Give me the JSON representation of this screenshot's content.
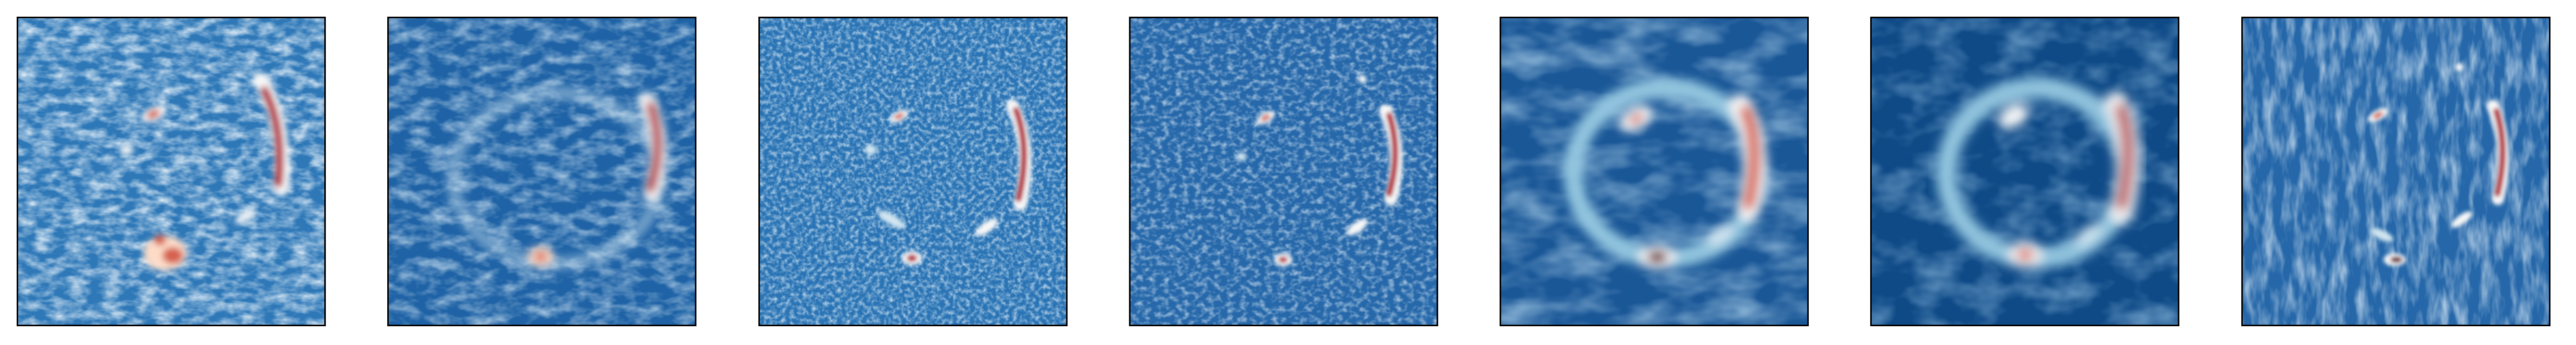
{
  "figure": {
    "description_free": true,
    "colormap": {
      "name": "RdBu_r",
      "stops": [
        "#08306b",
        "#2166ac",
        "#4393c3",
        "#92c5de",
        "#d1e5f0",
        "#f7f7f7",
        "#fddbc7",
        "#f4a582",
        "#d6604d",
        "#b2182b",
        "#67001f"
      ]
    },
    "panels": [
      {
        "id": 1,
        "base": "#2e78b8",
        "noise": "blotchy",
        "ring": false
      },
      {
        "id": 2,
        "base": "#1f63a6",
        "noise": "smooth",
        "ring": true
      },
      {
        "id": 3,
        "base": "#2a74b5",
        "noise": "fine",
        "ring": true
      },
      {
        "id": 4,
        "base": "#2668aa",
        "noise": "fine",
        "ring": true
      },
      {
        "id": 5,
        "base": "#1a5797",
        "noise": "smooth",
        "ring": true
      },
      {
        "id": 6,
        "base": "#0f4a87",
        "noise": "smooth",
        "ring": true
      },
      {
        "id": 7,
        "base": "#2567a9",
        "noise": "streaky",
        "ring": true
      }
    ]
  }
}
